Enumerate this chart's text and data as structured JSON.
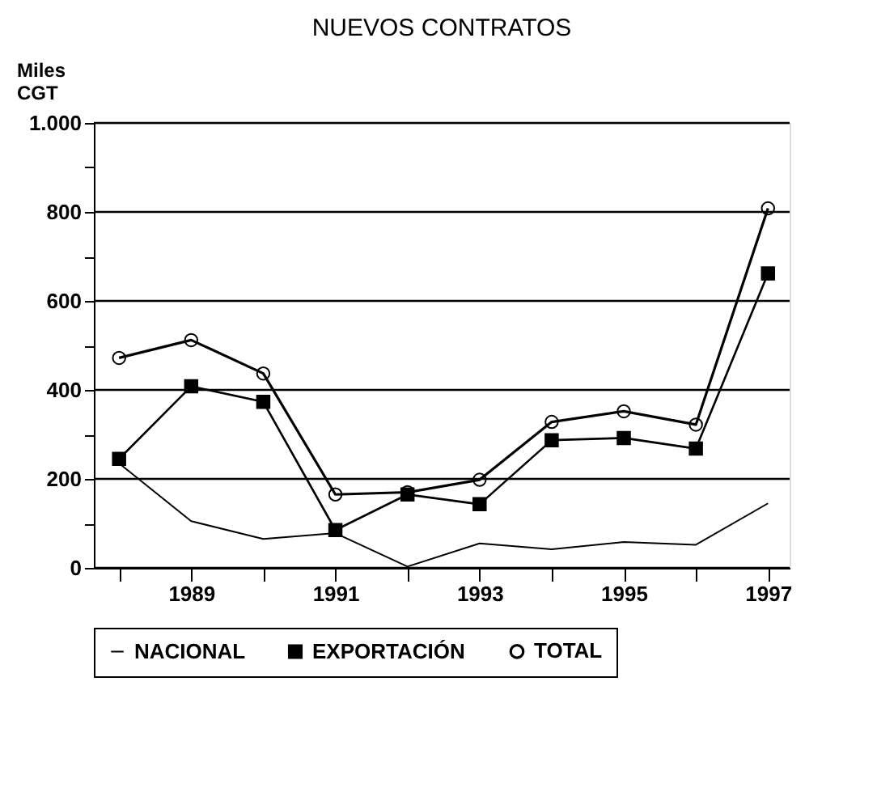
{
  "chart_data": {
    "type": "line",
    "title": "NUEVOS CONTRATOS",
    "ylabel": "Miles CGT",
    "x": [
      1988,
      1989,
      1990,
      1991,
      1992,
      1993,
      1994,
      1995,
      1996,
      1997
    ],
    "series": [
      {
        "name": "NACIONAL",
        "color": "#000000",
        "marker": "none",
        "values": [
          235,
          105,
          65,
          78,
          3,
          55,
          42,
          58,
          52,
          145
        ]
      },
      {
        "name": "EXPORTACIÓN",
        "color": "#000000",
        "marker": "square",
        "values": [
          245,
          408,
          373,
          85,
          165,
          143,
          287,
          292,
          268,
          662
        ]
      },
      {
        "name": "TOTAL",
        "color": "#000000",
        "marker": "circle",
        "values": [
          472,
          512,
          437,
          165,
          170,
          198,
          328,
          352,
          322,
          808
        ]
      }
    ],
    "xlim": [
      1987.65,
      1997.3
    ],
    "xticks": [
      {
        "value": 1988,
        "label": null
      },
      1989,
      {
        "value": 1990,
        "label": null
      },
      1991,
      {
        "value": 1992,
        "label": null
      },
      1993,
      {
        "value": 1994,
        "label": null
      },
      1995,
      {
        "value": 1996,
        "label": null
      },
      1997
    ],
    "ylim": [
      0,
      1000
    ],
    "yticks": [
      0,
      {
        "value": 100,
        "label": null
      },
      200,
      {
        "value": 300,
        "label": null
      },
      400,
      {
        "value": 500,
        "label": null
      },
      600,
      {
        "value": 700,
        "label": null
      },
      800,
      {
        "value": 900,
        "label": null
      },
      {
        "value": 1000,
        "label": "1.000"
      }
    ],
    "grid": "y",
    "legend": "bottom",
    "line_style": "solid"
  }
}
